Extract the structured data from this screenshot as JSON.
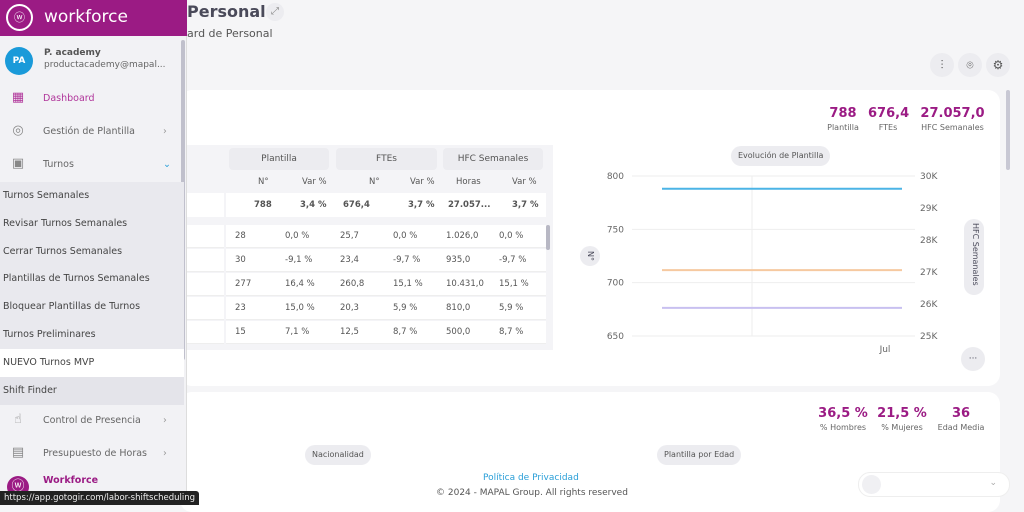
{
  "header": {
    "title": "Personal",
    "subtitle": "ard de Personal"
  },
  "toolbar": {
    "icons": [
      "sliders-icon",
      "location-pin-icon",
      "gear-icon"
    ]
  },
  "sidebar": {
    "brand": "workforce",
    "user": {
      "initials": "PA",
      "name": "P. academy",
      "email": "productacademy@mapal..."
    },
    "items": [
      {
        "label": "Dashboard",
        "icon": "dashboard-icon"
      },
      {
        "label": "Gestión de Plantilla",
        "icon": "user-icon"
      },
      {
        "label": "Turnos",
        "icon": "calendar-icon"
      }
    ],
    "subitems": [
      "Turnos Semanales",
      "Revisar Turnos Semanales",
      "Cerrar Turnos Semanales",
      "Plantillas de Turnos Semanales",
      "Bloquear Plantillas de Turnos Seman...",
      "Turnos Preliminares",
      "NUEVO Turnos MVP",
      "Shift Finder"
    ],
    "items2": [
      {
        "label": "Control de Presencia",
        "icon": "hand-pointer-icon"
      },
      {
        "label": "Presupuesto de Horas",
        "icon": "document-icon"
      },
      {
        "label": "Workforce",
        "icon": "workforce-logo-icon"
      }
    ]
  },
  "status_url": "https://app.gotogir.com/labor-shiftscheduling",
  "kpis1": [
    {
      "value": "788",
      "label": "Plantilla"
    },
    {
      "value": "676,4",
      "label": "FTEs"
    },
    {
      "value": "27.057,0",
      "label": "HFC Semanales"
    }
  ],
  "table": {
    "groups": [
      "Plantilla",
      "FTEs",
      "HFC Semanales"
    ],
    "subheaders": [
      "N°",
      "Var %",
      "N°",
      "Var %",
      "Horas",
      "Var %"
    ],
    "total": [
      "788",
      "3,4 %",
      "676,4",
      "3,7 %",
      "27.057...",
      "3,7 %"
    ],
    "rows": [
      [
        "28",
        "0,0 %",
        "25,7",
        "0,0 %",
        "1.026,0",
        "0,0 %"
      ],
      [
        "30",
        "-9,1 %",
        "23,4",
        "-9,7 %",
        "935,0",
        "-9,7 %"
      ],
      [
        "277",
        "16,4 %",
        "260,8",
        "15,1 %",
        "10.431,0",
        "15,1 %"
      ],
      [
        "23",
        "15,0 %",
        "20,3",
        "5,9 %",
        "810,0",
        "5,9 %"
      ],
      [
        "15",
        "7,1 %",
        "12,5",
        "8,7 %",
        "500,0",
        "8,7 %"
      ]
    ]
  },
  "chart_data": {
    "type": "line",
    "title": "Evolución de Plantilla",
    "x": [
      "Jul"
    ],
    "ylabel": "N°",
    "y2label": "HFC Semanales",
    "ylim": [
      650,
      800
    ],
    "y2lim": [
      25000,
      30000
    ],
    "yticks": [
      "800",
      "750",
      "700",
      "650"
    ],
    "y2ticks": [
      "30K",
      "29K",
      "28K",
      "27K",
      "26K",
      "25K"
    ],
    "series": [
      {
        "axis": "left",
        "value": 788,
        "color": "#4bb4e6"
      },
      {
        "axis": "right",
        "value": 27057,
        "color": "#f6c9a0"
      },
      {
        "axis": "left",
        "value": 676.4,
        "color": "#c8c0f0"
      }
    ],
    "grid": true
  },
  "kpis2": [
    {
      "value": "36,5 %",
      "label": "% Hombres"
    },
    {
      "value": "21,5 %",
      "label": "% Mujeres"
    },
    {
      "value": "36",
      "label": "Edad Media"
    }
  ],
  "chips": [
    "Nacionalidad",
    "Plantilla por Edad"
  ],
  "footer": {
    "privacy": "Política de Privacidad",
    "copyright": "© 2024 - MAPAL Group. All rights reserved"
  },
  "more_label": "···"
}
